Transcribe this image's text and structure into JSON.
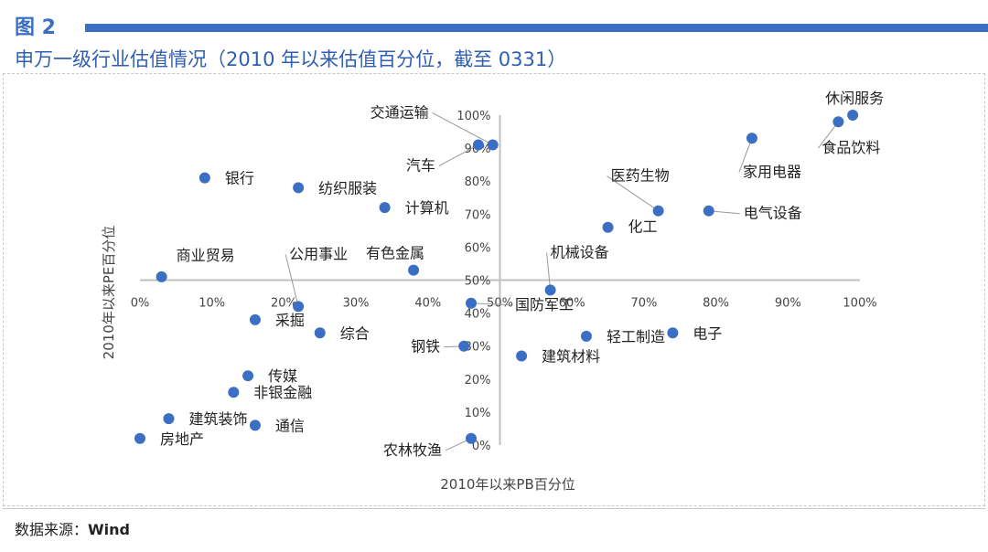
{
  "figure": {
    "label": "图 2",
    "title": "申万一级行业估值情况（2010 年以来估值百分位，截至 0331）"
  },
  "source": {
    "prefix": "数据来源：",
    "name": "Wind"
  },
  "chart_data": {
    "type": "scatter",
    "title": "申万一级行业估值情况（2010 年以来估值百分位，截至 0331）",
    "xlabel": "2010年以来PB百分位",
    "ylabel": "2010年以来PE百分位",
    "xlim": [
      0,
      100
    ],
    "ylim": [
      0,
      100
    ],
    "x_ticks": [
      "0%",
      "10%",
      "20%",
      "30%",
      "40%",
      "50%",
      "60%",
      "70%",
      "80%",
      "90%",
      "100%"
    ],
    "y_ticks": [
      "0%",
      "10%",
      "20%",
      "30%",
      "40%",
      "50%",
      "60%",
      "70%",
      "80%",
      "90%",
      "100%"
    ],
    "axis_crossing": {
      "x": 50,
      "y": 50
    },
    "grid": false,
    "marker_color": "#3a6fc4",
    "points": [
      {
        "label": "休闲服务",
        "x": 99,
        "y": 100
      },
      {
        "label": "食品饮料",
        "x": 97,
        "y": 98
      },
      {
        "label": "家用电器",
        "x": 85,
        "y": 93
      },
      {
        "label": "电气设备",
        "x": 79,
        "y": 71
      },
      {
        "label": "医药生物",
        "x": 72,
        "y": 71
      },
      {
        "label": "化工",
        "x": 65,
        "y": 66
      },
      {
        "label": "机械设备",
        "x": 57,
        "y": 47
      },
      {
        "label": "交通运输",
        "x": 49,
        "y": 91
      },
      {
        "label": "汽车",
        "x": 47,
        "y": 91
      },
      {
        "label": "银行",
        "x": 9,
        "y": 81
      },
      {
        "label": "纺织服装",
        "x": 22,
        "y": 78
      },
      {
        "label": "计算机",
        "x": 34,
        "y": 72
      },
      {
        "label": "商业贸易",
        "x": 3,
        "y": 51
      },
      {
        "label": "有色金属",
        "x": 38,
        "y": 53
      },
      {
        "label": "公用事业",
        "x": 22,
        "y": 42
      },
      {
        "label": "国防军工",
        "x": 46,
        "y": 43
      },
      {
        "label": "采掘",
        "x": 16,
        "y": 38
      },
      {
        "label": "综合",
        "x": 25,
        "y": 34
      },
      {
        "label": "电子",
        "x": 74,
        "y": 34
      },
      {
        "label": "轻工制造",
        "x": 62,
        "y": 33
      },
      {
        "label": "钢铁",
        "x": 45,
        "y": 30
      },
      {
        "label": "建筑材料",
        "x": 53,
        "y": 27
      },
      {
        "label": "传媒",
        "x": 15,
        "y": 21
      },
      {
        "label": "非银金融",
        "x": 13,
        "y": 16
      },
      {
        "label": "建筑装饰",
        "x": 4,
        "y": 8
      },
      {
        "label": "通信",
        "x": 16,
        "y": 6
      },
      {
        "label": "房地产",
        "x": 0,
        "y": 2
      },
      {
        "label": "农林牧渔",
        "x": 46,
        "y": 2
      }
    ]
  }
}
